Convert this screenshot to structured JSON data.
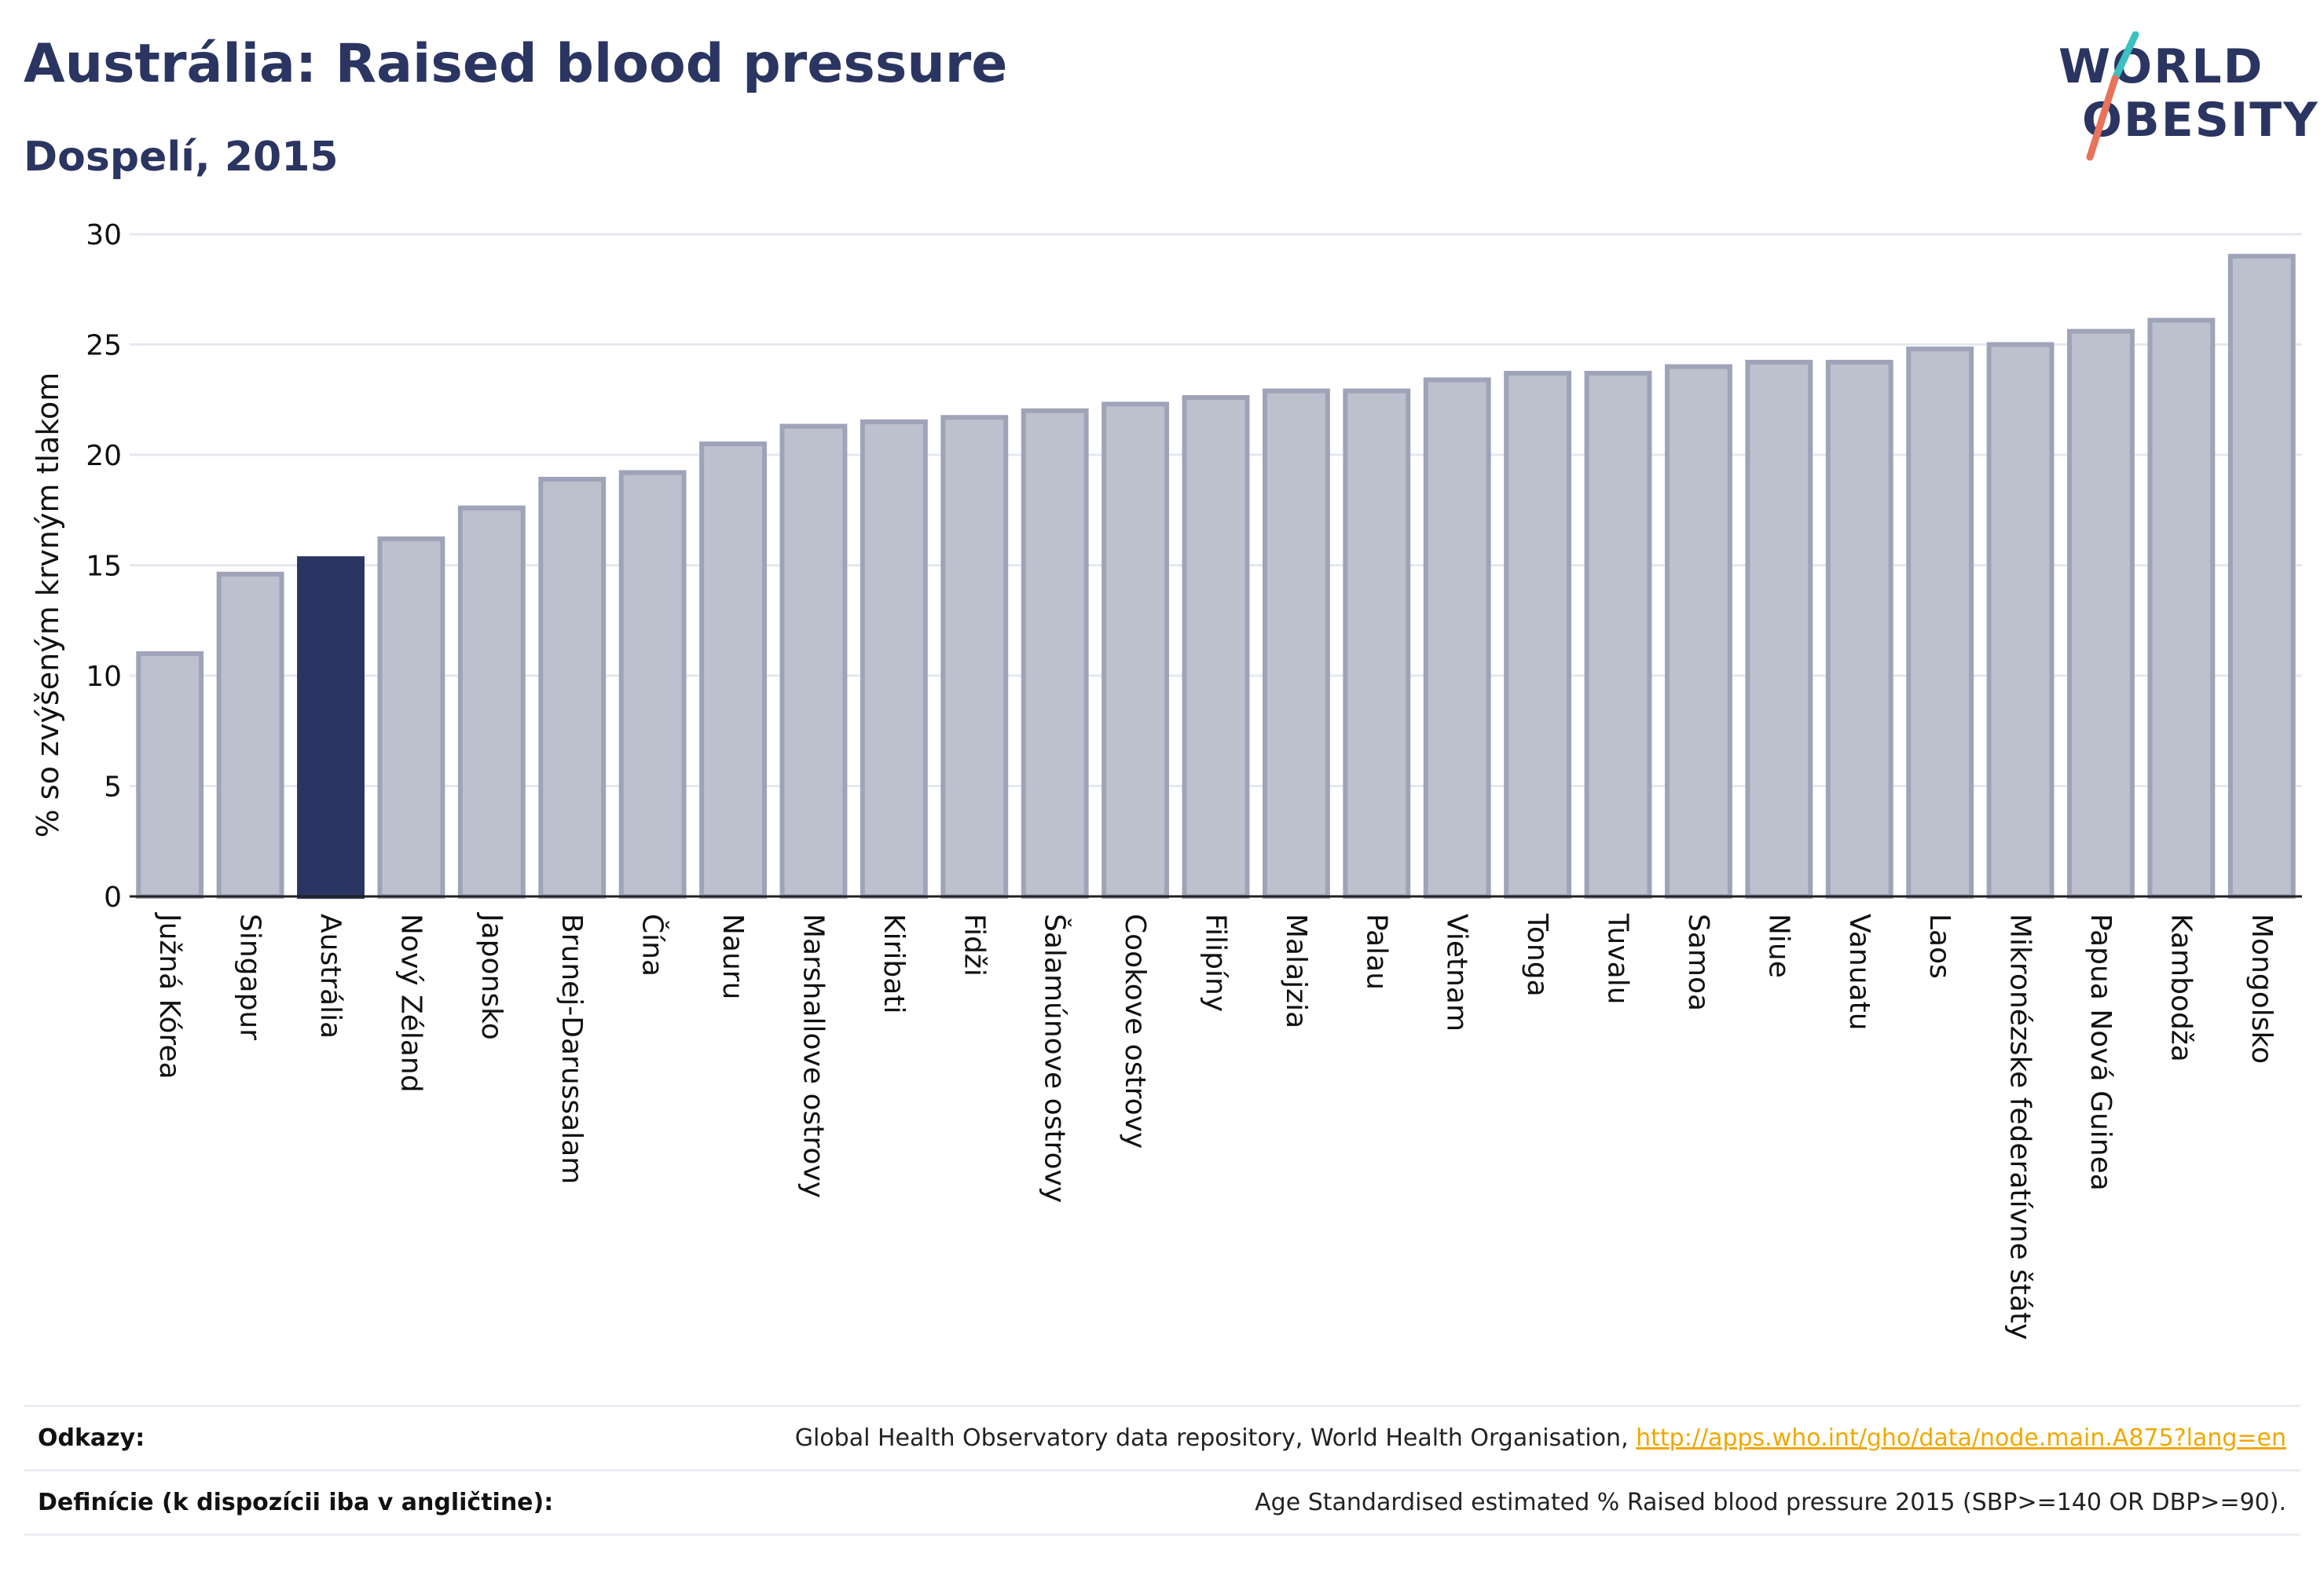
{
  "title": "Austrália: Raised blood pressure",
  "subtitle": "Dospelí, 2015",
  "logo": {
    "line1": "WORLD",
    "line2": "OBESITY",
    "accent_colors": [
      "#3cc0c0",
      "#e8735a"
    ]
  },
  "colors": {
    "highlight": "#2b3561",
    "bar": "#bdc0cd",
    "bar_edge": "#9ea3b8",
    "grid": "#e6e8ef"
  },
  "chart_data": {
    "type": "bar",
    "ylabel": "% so zvýšeným krvným tlakom",
    "xlabel": "",
    "ylim": [
      0,
      30
    ],
    "yticks": [
      0,
      5,
      10,
      15,
      20,
      25,
      30
    ],
    "grid": true,
    "highlight": "Austrália",
    "categories": [
      "Južná Kórea",
      "Singapur",
      "Austrália",
      "Nový Zéland",
      "Japonsko",
      "Brunej-Darussalam",
      "Čína",
      "Nauru",
      "Marshallove ostrovy",
      "Kiribati",
      "Fidži",
      "Šalamúnove ostrovy",
      "Cookove ostrovy",
      "Filipíny",
      "Malajzia",
      "Palau",
      "Vietnam",
      "Tonga",
      "Tuvalu",
      "Samoa",
      "Niue",
      "Vanuatu",
      "Laos",
      "Mikronézske federatívne štáty",
      "Papua Nová Guinea",
      "Kambodža",
      "Mongolsko"
    ],
    "values": [
      11.0,
      14.6,
      15.3,
      16.2,
      17.6,
      18.9,
      19.2,
      20.5,
      21.3,
      21.5,
      21.7,
      22.0,
      22.3,
      22.6,
      22.9,
      22.9,
      23.4,
      23.7,
      23.7,
      24.0,
      24.2,
      24.2,
      24.8,
      25.0,
      25.6,
      26.1,
      29.0
    ]
  },
  "footer": {
    "sources_label": "Odkazy:",
    "sources_text": "Global Health Observatory data repository, World Health Organisation, ",
    "sources_link": "http://apps.who.int/gho/data/node.main.A875?lang=en",
    "definitions_label": "Definície (k dispozícii iba v angličtine):",
    "definitions_text": "Age Standardised estimated % Raised blood pressure 2015 (SBP>=140 OR DBP>=90)."
  }
}
